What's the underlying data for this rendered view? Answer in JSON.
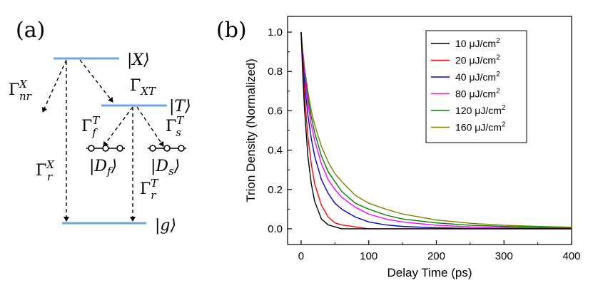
{
  "panel_a": {
    "label": "(a)",
    "states": {
      "X": "|X⟩",
      "T": "|T⟩",
      "Df": "|D",
      "Df_sub": "f",
      "Df_close": "⟩",
      "Ds": "|D",
      "Ds_sub": "s",
      "Ds_close": "⟩",
      "g": "|g⟩"
    },
    "rates": {
      "nrX_base": "Γ",
      "nrX_sup": "X",
      "nrX_sub": "nr",
      "XT_base": "Γ",
      "XT_sub": "XT",
      "fT_base": "Γ",
      "fT_sup": "T",
      "fT_sub": "f",
      "sT_base": "Γ",
      "sT_sup": "T",
      "sT_sub": "s",
      "rX_base": "Γ",
      "rX_sup": "X",
      "rX_sub": "r",
      "rT_base": "Γ",
      "rT_sup": "T",
      "rT_sub": "r"
    },
    "colors": {
      "level": "#6fa8dc",
      "arrow": "#000000"
    }
  },
  "panel_b": {
    "label": "(b)"
  },
  "chart_data": {
    "type": "line",
    "xlabel": "Delay Time (ps)",
    "ylabel": "Trion Density (Normalized)",
    "xlim": [
      -20,
      400
    ],
    "ylim": [
      -0.08,
      1.08
    ],
    "xticks": [
      0,
      100,
      200,
      300,
      400
    ],
    "yticks": [
      0.0,
      0.2,
      0.4,
      0.6,
      0.8,
      1.0
    ],
    "ytick_labels": [
      "0.0",
      "0.2",
      "0.4",
      "0.6",
      "0.8",
      "1.0"
    ],
    "grid": false,
    "legend_position": "top-right",
    "x": [
      0,
      2,
      5,
      10,
      15,
      20,
      30,
      40,
      50,
      60,
      80,
      100,
      125,
      150,
      200,
      250,
      300,
      350,
      400
    ],
    "series": [
      {
        "name": "10 μJ/cm",
        "name_sup": "2",
        "color": "#000000",
        "values": [
          1.0,
          0.82,
          0.61,
          0.37,
          0.23,
          0.14,
          0.05,
          0.02,
          0.01,
          0.0,
          0.0,
          0.0,
          0.0,
          0.0,
          0.0,
          0.0,
          0.0,
          0.0,
          0.0
        ]
      },
      {
        "name": "20 μJ/cm",
        "name_sup": "2",
        "color": "#ff0000",
        "values": [
          1.0,
          0.85,
          0.68,
          0.47,
          0.33,
          0.23,
          0.12,
          0.06,
          0.03,
          0.02,
          0.01,
          0.0,
          0.0,
          0.0,
          0.0,
          0.0,
          0.0,
          0.0,
          0.0
        ]
      },
      {
        "name": "40 μJ/cm",
        "name_sup": "2",
        "color": "#0000cc",
        "values": [
          1.0,
          0.88,
          0.74,
          0.58,
          0.46,
          0.37,
          0.25,
          0.18,
          0.13,
          0.1,
          0.06,
          0.035,
          0.02,
          0.012,
          0.005,
          0.002,
          0.001,
          0.0,
          0.0
        ]
      },
      {
        "name": "80 μJ/cm",
        "name_sup": "2",
        "color": "#ff00ff",
        "values": [
          1.0,
          0.9,
          0.78,
          0.64,
          0.53,
          0.45,
          0.33,
          0.25,
          0.2,
          0.16,
          0.11,
          0.075,
          0.05,
          0.035,
          0.018,
          0.01,
          0.006,
          0.003,
          0.002
        ]
      },
      {
        "name": "120 μJ/cm",
        "name_sup": "2",
        "color": "#008000",
        "values": [
          1.0,
          0.91,
          0.8,
          0.67,
          0.57,
          0.49,
          0.37,
          0.29,
          0.24,
          0.19,
          0.13,
          0.1,
          0.07,
          0.05,
          0.03,
          0.018,
          0.012,
          0.008,
          0.005
        ]
      },
      {
        "name": "160 μJ/cm",
        "name_sup": "2",
        "color": "#808000",
        "values": [
          1.0,
          0.92,
          0.82,
          0.7,
          0.6,
          0.53,
          0.42,
          0.34,
          0.28,
          0.24,
          0.17,
          0.13,
          0.1,
          0.075,
          0.045,
          0.028,
          0.018,
          0.012,
          0.008
        ]
      }
    ]
  }
}
